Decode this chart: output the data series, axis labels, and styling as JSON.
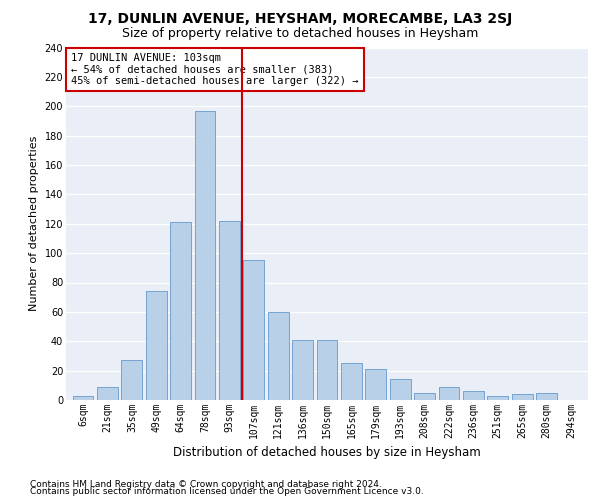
{
  "title": "17, DUNLIN AVENUE, HEYSHAM, MORECAMBE, LA3 2SJ",
  "subtitle": "Size of property relative to detached houses in Heysham",
  "xlabel": "Distribution of detached houses by size in Heysham",
  "ylabel": "Number of detached properties",
  "categories": [
    "6sqm",
    "21sqm",
    "35sqm",
    "49sqm",
    "64sqm",
    "78sqm",
    "93sqm",
    "107sqm",
    "121sqm",
    "136sqm",
    "150sqm",
    "165sqm",
    "179sqm",
    "193sqm",
    "208sqm",
    "222sqm",
    "236sqm",
    "251sqm",
    "265sqm",
    "280sqm",
    "294sqm"
  ],
  "values": [
    3,
    9,
    27,
    74,
    121,
    197,
    122,
    95,
    60,
    41,
    41,
    25,
    21,
    14,
    5,
    9,
    6,
    3,
    4,
    5,
    0
  ],
  "bar_color": "#b8d0e8",
  "bar_edge_color": "#6699cc",
  "vline_color": "#cc0000",
  "annotation_text": "17 DUNLIN AVENUE: 103sqm\n← 54% of detached houses are smaller (383)\n45% of semi-detached houses are larger (322) →",
  "annotation_box_color": "#ffffff",
  "annotation_box_edge_color": "#cc0000",
  "ylim": [
    0,
    240
  ],
  "yticks": [
    0,
    20,
    40,
    60,
    80,
    100,
    120,
    140,
    160,
    180,
    200,
    220,
    240
  ],
  "bg_color": "#eaeff7",
  "grid_color": "#ffffff",
  "footer_line1": "Contains HM Land Registry data © Crown copyright and database right 2024.",
  "footer_line2": "Contains public sector information licensed under the Open Government Licence v3.0.",
  "title_fontsize": 10,
  "subtitle_fontsize": 9,
  "xlabel_fontsize": 8.5,
  "ylabel_fontsize": 8,
  "tick_fontsize": 7,
  "footer_fontsize": 6.5,
  "annot_fontsize": 7.5
}
